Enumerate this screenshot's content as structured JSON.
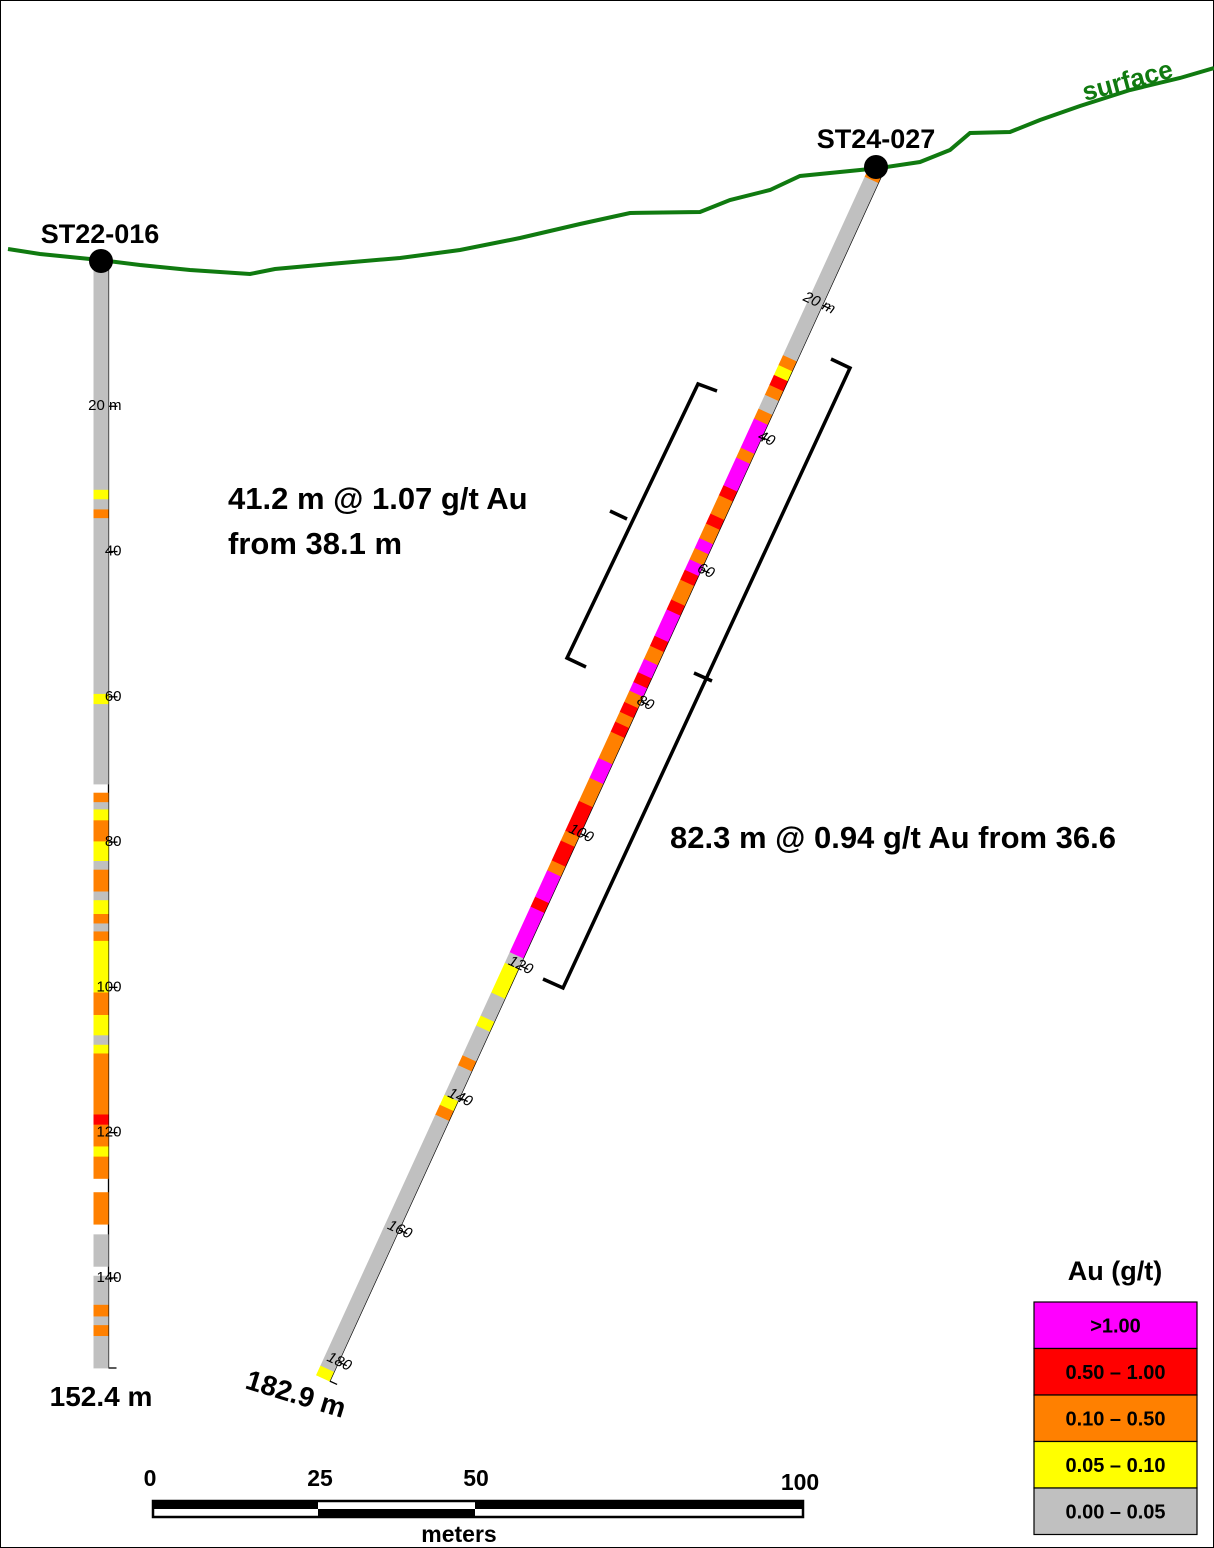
{
  "surface": {
    "label": "surface",
    "color": "#107a10"
  },
  "holes": [
    {
      "id": "ST22-016",
      "end_label": "152.4 m",
      "total_depth": 152.4,
      "tick_labels": [
        {
          "depth": 20,
          "text": "20 m"
        },
        {
          "depth": 40,
          "text": "40"
        },
        {
          "depth": 60,
          "text": "60"
        },
        {
          "depth": 80,
          "text": "80"
        },
        {
          "depth": 100,
          "text": "100"
        },
        {
          "depth": 120,
          "text": "120"
        },
        {
          "depth": 140,
          "text": "140"
        }
      ],
      "intervals": [
        {
          "from": 0,
          "to": 31.5,
          "cls": "0.00 – 0.05"
        },
        {
          "from": 31.5,
          "to": 32.8,
          "cls": "0.05 – 0.10"
        },
        {
          "from": 32.8,
          "to": 34.2,
          "cls": "0.00 – 0.05"
        },
        {
          "from": 34.2,
          "to": 35.4,
          "cls": "0.10 – 0.50"
        },
        {
          "from": 35.4,
          "to": 59.6,
          "cls": "0.00 – 0.05"
        },
        {
          "from": 59.6,
          "to": 61.0,
          "cls": "0.05 – 0.10"
        },
        {
          "from": 61.0,
          "to": 72.0,
          "cls": "0.00 – 0.05"
        },
        {
          "from": 73.2,
          "to": 74.5,
          "cls": "0.10 – 0.50"
        },
        {
          "from": 74.5,
          "to": 75.5,
          "cls": "0.00 – 0.05"
        },
        {
          "from": 75.5,
          "to": 77.0,
          "cls": "0.05 – 0.10"
        },
        {
          "from": 77.0,
          "to": 79.9,
          "cls": "0.10 – 0.50"
        },
        {
          "from": 79.9,
          "to": 82.6,
          "cls": "0.05 – 0.10"
        },
        {
          "from": 82.6,
          "to": 83.8,
          "cls": "0.00 – 0.05"
        },
        {
          "from": 83.8,
          "to": 86.8,
          "cls": "0.10 – 0.50"
        },
        {
          "from": 86.8,
          "to": 88.0,
          "cls": "0.00 – 0.05"
        },
        {
          "from": 88.0,
          "to": 89.9,
          "cls": "0.05 – 0.10"
        },
        {
          "from": 89.9,
          "to": 91.2,
          "cls": "0.10 – 0.50"
        },
        {
          "from": 91.2,
          "to": 92.3,
          "cls": "0.00 – 0.05"
        },
        {
          "from": 92.3,
          "to": 93.6,
          "cls": "0.10 – 0.50"
        },
        {
          "from": 93.6,
          "to": 100.7,
          "cls": "0.05 – 0.10"
        },
        {
          "from": 100.7,
          "to": 103.8,
          "cls": "0.10 – 0.50"
        },
        {
          "from": 103.8,
          "to": 106.6,
          "cls": "0.05 – 0.10"
        },
        {
          "from": 106.6,
          "to": 107.9,
          "cls": "0.00 – 0.05"
        },
        {
          "from": 107.9,
          "to": 109.1,
          "cls": "0.05 – 0.10"
        },
        {
          "from": 109.1,
          "to": 117.5,
          "cls": "0.10 – 0.50"
        },
        {
          "from": 117.5,
          "to": 118.9,
          "cls": "0.50 – 1.00"
        },
        {
          "from": 118.9,
          "to": 121.9,
          "cls": "0.10 – 0.50"
        },
        {
          "from": 121.9,
          "to": 123.3,
          "cls": "0.05 – 0.10"
        },
        {
          "from": 123.3,
          "to": 126.3,
          "cls": "0.10 – 0.50"
        },
        {
          "from": 128.2,
          "to": 132.6,
          "cls": "0.10 – 0.50"
        },
        {
          "from": 134.0,
          "to": 138.4,
          "cls": "0.00 – 0.05"
        },
        {
          "from": 139.7,
          "to": 143.7,
          "cls": "0.00 – 0.05"
        },
        {
          "from": 143.7,
          "to": 145.3,
          "cls": "0.10 – 0.50"
        },
        {
          "from": 145.3,
          "to": 146.5,
          "cls": "0.00 – 0.05"
        },
        {
          "from": 146.5,
          "to": 148.0,
          "cls": "0.10 – 0.50"
        },
        {
          "from": 148.0,
          "to": 152.4,
          "cls": "0.00 – 0.05"
        }
      ]
    },
    {
      "id": "ST24-027",
      "end_label": "182.9 m",
      "total_depth": 182.9,
      "tick_labels": [
        {
          "depth": 20,
          "text": "20 m"
        },
        {
          "depth": 40,
          "text": "40"
        },
        {
          "depth": 60,
          "text": "60"
        },
        {
          "depth": 80,
          "text": "80"
        },
        {
          "depth": 100,
          "text": "100"
        },
        {
          "depth": 120,
          "text": "120"
        },
        {
          "depth": 140,
          "text": "140"
        },
        {
          "depth": 160,
          "text": "160"
        },
        {
          "depth": 180,
          "text": "180"
        }
      ],
      "intervals": [
        {
          "from": 0,
          "to": 1.5,
          "cls": "0.10 – 0.50"
        },
        {
          "from": 1.5,
          "to": 28.5,
          "cls": "0.00 – 0.05"
        },
        {
          "from": 28.5,
          "to": 30.0,
          "cls": "0.10 – 0.50"
        },
        {
          "from": 30.0,
          "to": 31.5,
          "cls": "0.05 – 0.10"
        },
        {
          "from": 31.5,
          "to": 33.0,
          "cls": "0.50 – 1.00"
        },
        {
          "from": 33.0,
          "to": 34.5,
          "cls": "0.10 – 0.50"
        },
        {
          "from": 34.5,
          "to": 36.6,
          "cls": "0.00 – 0.05"
        },
        {
          "from": 36.6,
          "to": 38.1,
          "cls": "0.10 – 0.50"
        },
        {
          "from": 38.1,
          "to": 42.5,
          "cls": ">1.00"
        },
        {
          "from": 42.5,
          "to": 44.0,
          "cls": "0.10 – 0.50"
        },
        {
          "from": 44.0,
          "to": 48.2,
          "cls": ">1.00"
        },
        {
          "from": 48.2,
          "to": 49.7,
          "cls": "0.50 – 1.00"
        },
        {
          "from": 49.7,
          "to": 52.5,
          "cls": "0.10 – 0.50"
        },
        {
          "from": 52.5,
          "to": 54.0,
          "cls": "0.50 – 1.00"
        },
        {
          "from": 54.0,
          "to": 56.2,
          "cls": "0.10 – 0.50"
        },
        {
          "from": 56.2,
          "to": 57.7,
          "cls": ">1.00"
        },
        {
          "from": 57.7,
          "to": 59.4,
          "cls": "0.10 – 0.50"
        },
        {
          "from": 59.4,
          "to": 61.0,
          "cls": ">1.00"
        },
        {
          "from": 61.0,
          "to": 62.5,
          "cls": "0.50 – 1.00"
        },
        {
          "from": 62.5,
          "to": 65.5,
          "cls": "0.10 – 0.50"
        },
        {
          "from": 65.5,
          "to": 67.0,
          "cls": "0.50 – 1.00"
        },
        {
          "from": 67.0,
          "to": 71.0,
          "cls": ">1.00"
        },
        {
          "from": 71.0,
          "to": 72.5,
          "cls": "0.50 – 1.00"
        },
        {
          "from": 72.5,
          "to": 74.5,
          "cls": "0.10 – 0.50"
        },
        {
          "from": 74.5,
          "to": 76.5,
          "cls": ">1.00"
        },
        {
          "from": 76.5,
          "to": 78.0,
          "cls": "0.50 – 1.00"
        },
        {
          "from": 78.0,
          "to": 79.3,
          "cls": ">1.00"
        },
        {
          "from": 79.3,
          "to": 81.0,
          "cls": "0.10 – 0.50"
        },
        {
          "from": 81.0,
          "to": 82.5,
          "cls": "0.50 – 1.00"
        },
        {
          "from": 82.5,
          "to": 84.0,
          "cls": "0.10 – 0.50"
        },
        {
          "from": 84.0,
          "to": 85.5,
          "cls": "0.50 – 1.00"
        },
        {
          "from": 85.5,
          "to": 89.5,
          "cls": "0.10 – 0.50"
        },
        {
          "from": 89.5,
          "to": 92.5,
          "cls": ">1.00"
        },
        {
          "from": 92.5,
          "to": 96.0,
          "cls": "0.10 – 0.50"
        },
        {
          "from": 96.0,
          "to": 100.5,
          "cls": "0.50 – 1.00"
        },
        {
          "from": 100.5,
          "to": 102.0,
          "cls": "0.10 – 0.50"
        },
        {
          "from": 102.0,
          "to": 105.0,
          "cls": "0.50 – 1.00"
        },
        {
          "from": 105.0,
          "to": 106.5,
          "cls": "0.10 – 0.50"
        },
        {
          "from": 106.5,
          "to": 110.5,
          "cls": ">1.00"
        },
        {
          "from": 110.5,
          "to": 112.0,
          "cls": "0.50 – 1.00"
        },
        {
          "from": 112.0,
          "to": 118.9,
          "cls": ">1.00"
        },
        {
          "from": 118.9,
          "to": 120.5,
          "cls": "0.00 – 0.05"
        },
        {
          "from": 120.5,
          "to": 125.0,
          "cls": "0.05 – 0.10"
        },
        {
          "from": 125.0,
          "to": 128.5,
          "cls": "0.00 – 0.05"
        },
        {
          "from": 128.5,
          "to": 130.0,
          "cls": "0.05 – 0.10"
        },
        {
          "from": 130.0,
          "to": 134.5,
          "cls": "0.00 – 0.05"
        },
        {
          "from": 134.5,
          "to": 136.0,
          "cls": "0.10 – 0.50"
        },
        {
          "from": 136.0,
          "to": 140.5,
          "cls": "0.00 – 0.05"
        },
        {
          "from": 140.5,
          "to": 142.0,
          "cls": "0.05 – 0.10"
        },
        {
          "from": 142.0,
          "to": 143.5,
          "cls": "0.10 – 0.50"
        },
        {
          "from": 143.5,
          "to": 181.5,
          "cls": "0.00 – 0.05"
        },
        {
          "from": 181.5,
          "to": 182.9,
          "cls": "0.05 – 0.10"
        }
      ]
    }
  ],
  "intercepts": [
    {
      "line1": "41.2 m @ 1.07 g/t Au",
      "line2": "from 38.1 m",
      "from": 38.1,
      "length": 41.2,
      "grade": 1.07
    },
    {
      "line1": "82.3 m @ 0.94 g/t Au from 36.6",
      "from": 36.6,
      "length": 82.3,
      "grade": 0.94
    }
  ],
  "scale_bar": {
    "labels": [
      "0",
      "25",
      "50",
      "100"
    ],
    "values": [
      0,
      25,
      50,
      100
    ],
    "unit": "meters"
  },
  "legend": {
    "title": "Au (g/t)",
    "items": [
      {
        "label": ">1.00",
        "color": "#ff00ff"
      },
      {
        "label": "0.50 – 1.00",
        "color": "#ff0000"
      },
      {
        "label": "0.10 – 0.50",
        "color": "#ff8000"
      },
      {
        "label": "0.05 – 0.10",
        "color": "#ffff00"
      },
      {
        "label": "0.00 – 0.05",
        "color": "#c0c0c0"
      }
    ]
  }
}
